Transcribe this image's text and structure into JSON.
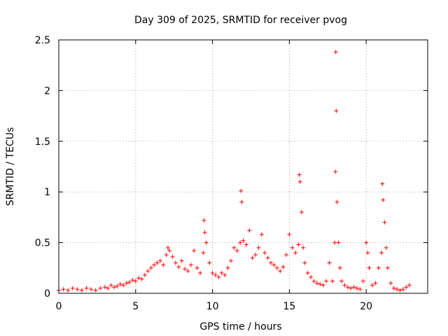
{
  "chart_data": {
    "type": "scatter",
    "title": "Day 309 of 2025, SRMTID for receiver pvog",
    "xlabel": "GPS time / hours",
    "ylabel": "SRMTID / TECUs",
    "xlim": [
      0,
      24
    ],
    "ylim": [
      0,
      2.5
    ],
    "x_ticks": [
      0,
      5,
      10,
      15,
      20
    ],
    "x_tick_labels": [
      "0",
      "5",
      "10",
      "15",
      "20"
    ],
    "y_ticks": [
      0,
      0.5,
      1,
      1.5,
      2,
      2.5
    ],
    "y_tick_labels": [
      "0",
      "0.5",
      "1",
      "1.5",
      "2",
      "2.5"
    ],
    "grid": true,
    "marker": "+",
    "series": [
      {
        "name": "SRMTID",
        "color": "#ff0000",
        "x": [
          0.0,
          0.3,
          0.6,
          0.9,
          1.2,
          1.5,
          1.8,
          2.1,
          2.4,
          2.7,
          3.0,
          3.2,
          3.4,
          3.6,
          3.8,
          4.0,
          4.2,
          4.4,
          4.6,
          4.8,
          5.0,
          5.2,
          5.4,
          5.6,
          5.8,
          6.0,
          6.2,
          6.4,
          6.6,
          6.8,
          7.0,
          7.1,
          7.2,
          7.4,
          7.6,
          7.8,
          8.0,
          8.2,
          8.4,
          8.6,
          8.8,
          9.0,
          9.2,
          9.4,
          9.45,
          9.5,
          9.6,
          9.8,
          10.0,
          10.2,
          10.4,
          10.6,
          10.8,
          11.0,
          11.2,
          11.4,
          11.6,
          11.8,
          11.85,
          11.9,
          12.0,
          12.2,
          12.4,
          12.6,
          12.8,
          13.0,
          13.2,
          13.4,
          13.6,
          13.8,
          14.0,
          14.2,
          14.4,
          14.6,
          14.8,
          15.0,
          15.2,
          15.4,
          15.6,
          15.65,
          15.7,
          15.8,
          15.9,
          16.0,
          16.2,
          16.4,
          16.6,
          16.8,
          17.0,
          17.2,
          17.4,
          17.6,
          17.8,
          17.95,
          18.0,
          18.02,
          18.05,
          18.1,
          18.2,
          18.3,
          18.4,
          18.6,
          18.8,
          19.0,
          19.2,
          19.4,
          19.6,
          19.8,
          20.0,
          20.1,
          20.2,
          20.4,
          20.6,
          20.8,
          21.0,
          21.05,
          21.1,
          21.2,
          21.3,
          21.4,
          21.6,
          21.8,
          22.0,
          22.2,
          22.4,
          22.6,
          22.8
        ],
        "y": [
          0.03,
          0.04,
          0.03,
          0.05,
          0.04,
          0.03,
          0.05,
          0.04,
          0.03,
          0.05,
          0.06,
          0.05,
          0.08,
          0.06,
          0.07,
          0.09,
          0.08,
          0.1,
          0.11,
          0.13,
          0.12,
          0.15,
          0.14,
          0.18,
          0.22,
          0.25,
          0.28,
          0.3,
          0.32,
          0.28,
          0.38,
          0.45,
          0.42,
          0.36,
          0.3,
          0.26,
          0.32,
          0.24,
          0.22,
          0.28,
          0.42,
          0.25,
          0.2,
          0.4,
          0.72,
          0.6,
          0.5,
          0.3,
          0.2,
          0.18,
          0.16,
          0.2,
          0.18,
          0.25,
          0.32,
          0.45,
          0.42,
          0.5,
          1.01,
          0.9,
          0.52,
          0.48,
          0.62,
          0.35,
          0.38,
          0.45,
          0.58,
          0.4,
          0.35,
          0.3,
          0.28,
          0.25,
          0.22,
          0.26,
          0.38,
          0.58,
          0.45,
          0.4,
          0.48,
          1.17,
          1.1,
          0.8,
          0.45,
          0.3,
          0.2,
          0.16,
          0.12,
          0.1,
          0.09,
          0.08,
          0.12,
          0.3,
          0.12,
          0.5,
          1.2,
          2.38,
          1.8,
          0.9,
          0.5,
          0.25,
          0.12,
          0.08,
          0.06,
          0.05,
          0.06,
          0.05,
          0.04,
          0.12,
          0.5,
          0.4,
          0.25,
          0.08,
          0.1,
          0.25,
          0.4,
          1.08,
          0.92,
          0.7,
          0.45,
          0.25,
          0.1,
          0.05,
          0.04,
          0.03,
          0.04,
          0.06,
          0.08
        ]
      }
    ]
  }
}
